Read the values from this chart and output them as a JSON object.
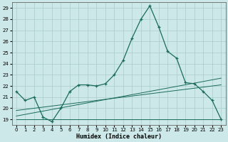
{
  "xlabel": "Humidex (Indice chaleur)",
  "ylabel": "",
  "bg_color": "#cce8e8",
  "grid_color": "#aacccc",
  "line_color": "#1a6b5a",
  "xlim": [
    -0.5,
    23.5
  ],
  "ylim": [
    18.5,
    29.5
  ],
  "xticks": [
    0,
    1,
    2,
    3,
    4,
    5,
    6,
    7,
    8,
    9,
    10,
    11,
    12,
    13,
    14,
    15,
    16,
    17,
    18,
    19,
    20,
    21,
    22,
    23
  ],
  "yticks": [
    19,
    20,
    21,
    22,
    23,
    24,
    25,
    26,
    27,
    28,
    29
  ],
  "line1_x": [
    0,
    1,
    2,
    3,
    4,
    5,
    6,
    7,
    8,
    9,
    10,
    11,
    12,
    13,
    14,
    15,
    16,
    17,
    18,
    19,
    20,
    21,
    22,
    23
  ],
  "line1_y": [
    21.5,
    20.7,
    21.0,
    19.2,
    18.8,
    20.0,
    21.5,
    22.1,
    22.1,
    22.0,
    22.2,
    23.0,
    24.3,
    26.3,
    28.0,
    29.2,
    27.3,
    25.1,
    24.5,
    22.3,
    22.2,
    21.5,
    20.7,
    19.0
  ],
  "line2_x": [
    0,
    1,
    2,
    3,
    4,
    5,
    6,
    7,
    8,
    9,
    10,
    11,
    12,
    13,
    14,
    15,
    16,
    17,
    18,
    19,
    20,
    21,
    22,
    23
  ],
  "line2_y": [
    19.0,
    19.0,
    19.0,
    19.0,
    19.0,
    19.0,
    19.0,
    19.0,
    19.0,
    19.0,
    19.0,
    19.0,
    19.0,
    19.0,
    19.0,
    19.0,
    19.0,
    19.0,
    19.0,
    19.0,
    19.0,
    19.0,
    19.0,
    19.0
  ],
  "line3_x": [
    0,
    23
  ],
  "line3_y": [
    19.3,
    22.7
  ],
  "line4_x": [
    0,
    23
  ],
  "line4_y": [
    19.8,
    22.1
  ]
}
